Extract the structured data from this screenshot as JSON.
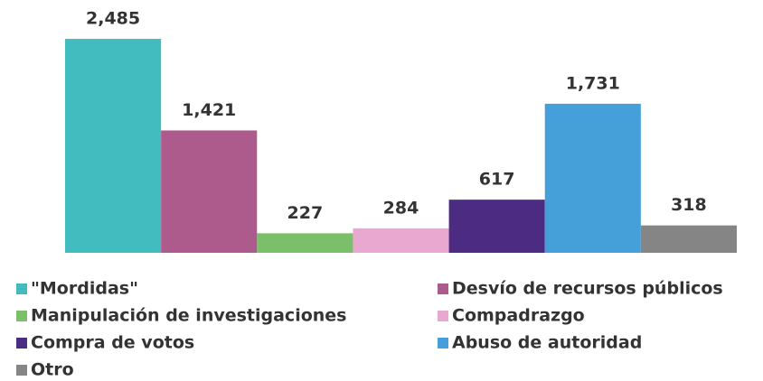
{
  "chart_data": {
    "type": "bar",
    "categories": [
      "\"Mordidas\"",
      "Desvío de recursos públicos",
      "Manipulación de investigaciones",
      "Compadrazgo",
      "Compra de votos",
      "Abuso de autoridad",
      "Otro"
    ],
    "values": [
      2485,
      1421,
      227,
      284,
      617,
      1731,
      318
    ],
    "value_labels": [
      "2,485",
      "1,421",
      "227",
      "284",
      "617",
      "1,731",
      "318"
    ],
    "colors": [
      "#43bcc0",
      "#ad5a8c",
      "#7bbf6a",
      "#e8a8cf",
      "#4b2c82",
      "#45a0d9",
      "#858585"
    ],
    "legend": "bottom"
  }
}
